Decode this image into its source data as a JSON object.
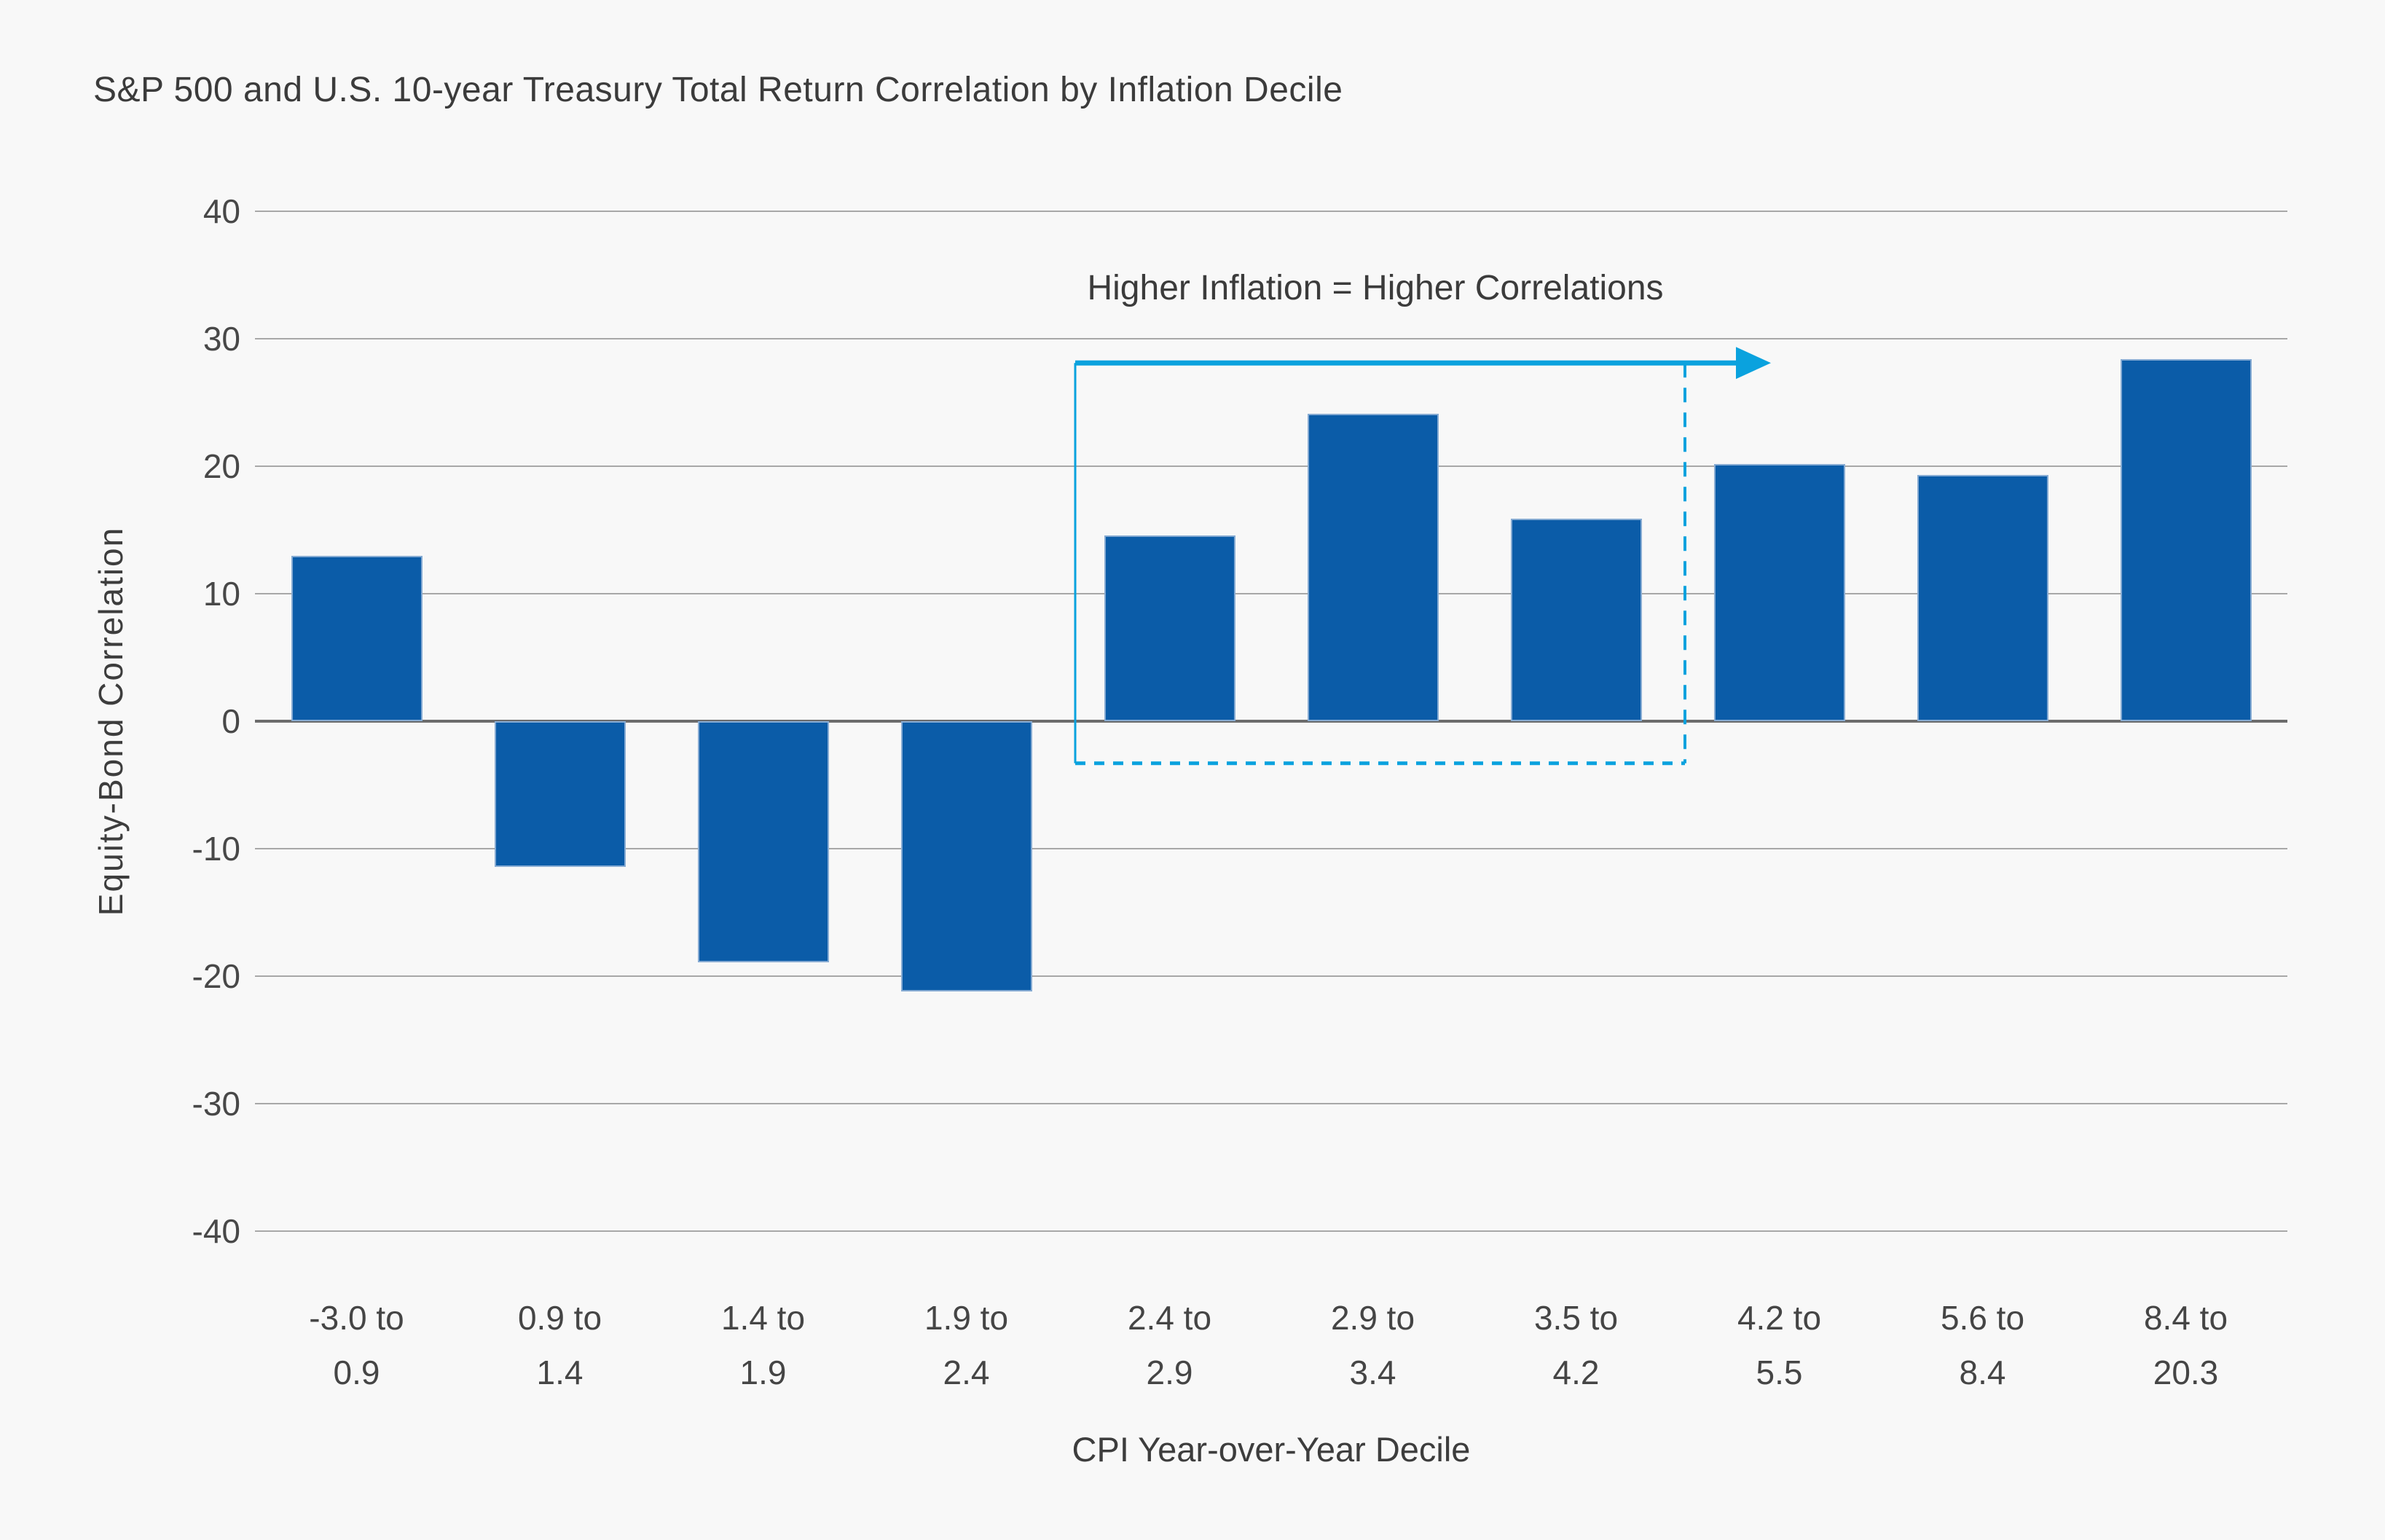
{
  "title": "S&P 500 and U.S. 10-year Treasury Total Return Correlation by Inflation Decile",
  "annotation": {
    "label": "Higher Inflation = Higher Correlations",
    "start_slot": 4,
    "end_slot": 7,
    "top_value": 28.1,
    "bottom_value": -3.3
  },
  "colors": {
    "background": "#f8f8f8",
    "bar": "#0b5ca8",
    "bar_edge": "#86abd3",
    "grid": "#a8a8a8",
    "zero_line": "#6c6c6c",
    "accent": "#0aa2de",
    "text": "#3d3d3d"
  },
  "chart_data": {
    "type": "bar",
    "title": "S&P 500 and U.S. 10-year Treasury Total Return Correlation by Inflation Decile",
    "categories": [
      [
        "-3.0 to",
        "0.9"
      ],
      [
        "0.9 to",
        "1.4"
      ],
      [
        "1.4 to",
        "1.9"
      ],
      [
        "1.9 to",
        "2.4"
      ],
      [
        "2.4 to",
        "2.9"
      ],
      [
        "2.9 to",
        "3.4"
      ],
      [
        "3.5 to",
        "4.2"
      ],
      [
        "4.2 to",
        "5.5"
      ],
      [
        "5.6 to",
        "8.4"
      ],
      [
        "8.4 to",
        "20.3"
      ]
    ],
    "values": [
      13.0,
      -11.4,
      -18.9,
      -21.2,
      14.6,
      24.1,
      15.9,
      20.2,
      19.3,
      28.4
    ],
    "xlabel": "CPI Year-over-Year Decile",
    "ylabel": "Equity-Bond Correlation",
    "ylim": [
      -40,
      40
    ],
    "ytick_step": 10,
    "grid": true,
    "legend": false,
    "annotation_text": "Higher Inflation = Higher Correlations"
  }
}
